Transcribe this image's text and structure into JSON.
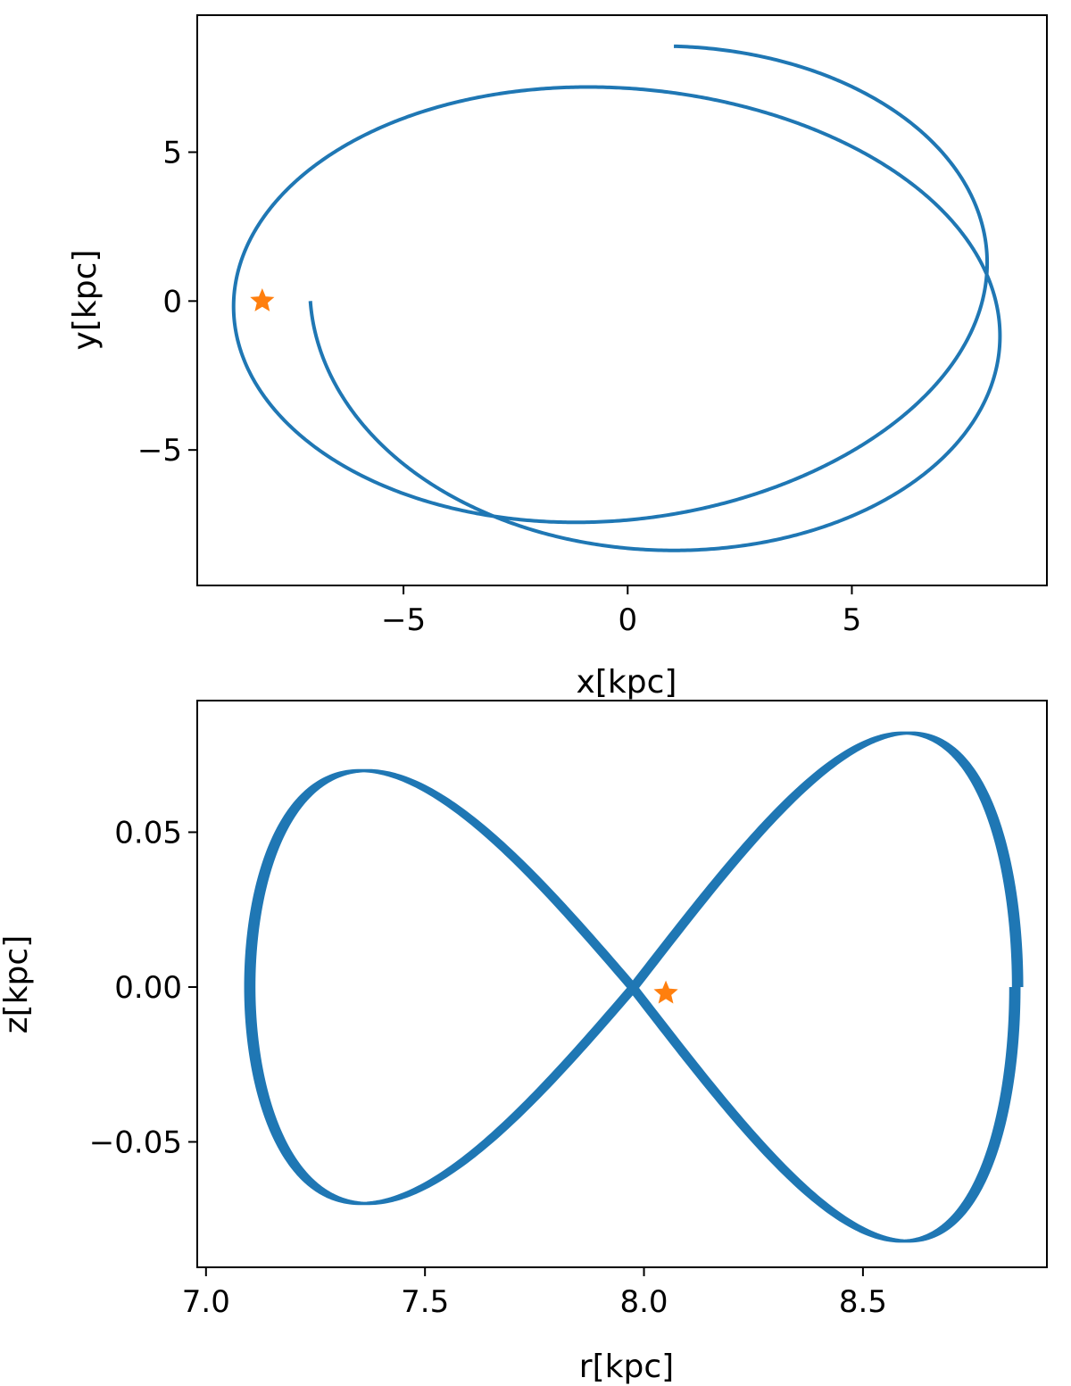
{
  "chart_data": [
    {
      "type": "line",
      "title": "",
      "xlabel": "x[kpc]",
      "ylabel": "y[kpc]",
      "xlim": [
        -9.6,
        9.35
      ],
      "ylim": [
        -9.55,
        9.6
      ],
      "xticks": [
        -5,
        0,
        5
      ],
      "xtick_labels": [
        "−5",
        "0",
        "5"
      ],
      "yticks": [
        -5,
        0,
        5
      ],
      "ytick_labels": [
        "−5",
        "0",
        "5"
      ],
      "grid": false,
      "series": [
        {
          "marker": "line",
          "color": "#1f77b4",
          "orbit": {
            "r_min": 7.1,
            "r_max": 8.85,
            "phase_start_deg": 180,
            "radial_periods": 2.62,
            "azimuth_per_radial_period_deg": 238,
            "y_scale": 0.985,
            "x_offset": 0.05
          }
        },
        {
          "marker": "star",
          "color": "#ff7f0e",
          "points": [
            [
              -8.15,
              0.0
            ]
          ]
        }
      ]
    },
    {
      "type": "line",
      "title": "",
      "xlabel": "r[kpc]",
      "ylabel": "z[kpc]",
      "xlim": [
        6.98,
        8.92
      ],
      "ylim": [
        -0.0905,
        0.0925
      ],
      "xticks": [
        7.0,
        7.5,
        8.0,
        8.5
      ],
      "xtick_labels": [
        "7.0",
        "7.5",
        "8.0",
        "8.5"
      ],
      "yticks": [
        -0.05,
        0.0,
        0.05
      ],
      "ytick_labels": [
        "−0.05",
        "0.00",
        "0.05"
      ],
      "grid": false,
      "series": [
        {
          "marker": "line",
          "color": "#1f77b4",
          "orbit": {
            "r_min": 7.1,
            "r_max": 8.85,
            "z_amp_small_r": 0.075,
            "z_amp_large_r": 0.083,
            "loops": 4,
            "loop_drift_r": 0.025
          }
        },
        {
          "marker": "star",
          "color": "#ff7f0e",
          "points": [
            [
              8.05,
              -0.002
            ]
          ]
        }
      ]
    }
  ]
}
